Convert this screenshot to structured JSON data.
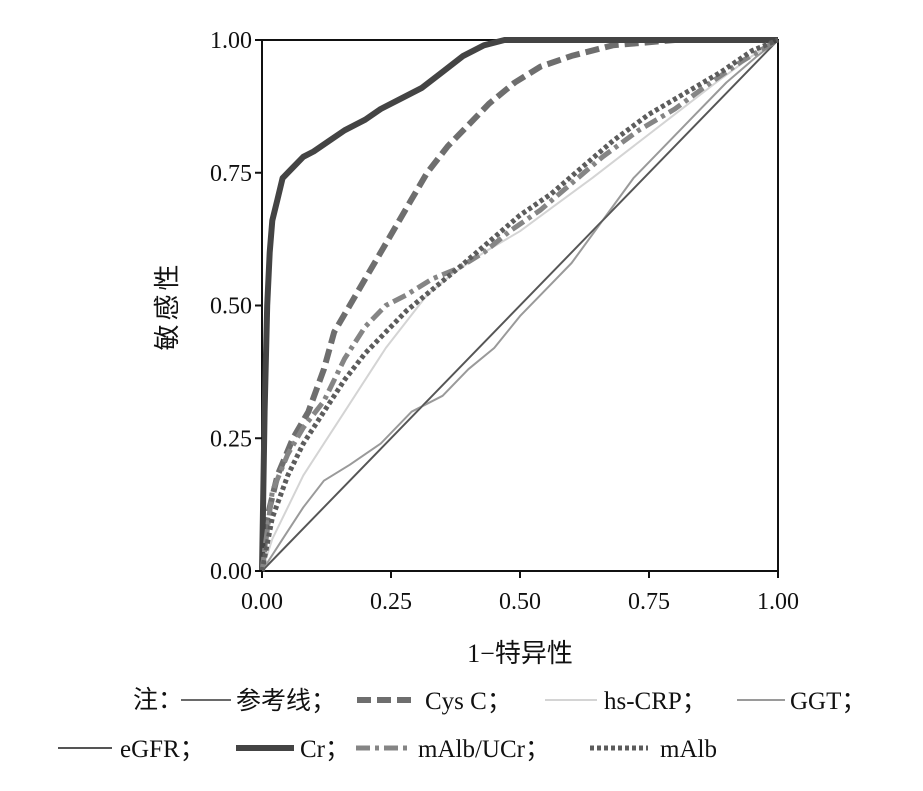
{
  "chart_data": {
    "type": "line",
    "xlabel": "1−特异性",
    "ylabel": "敏感性",
    "xlim": [
      0,
      1
    ],
    "ylim": [
      0,
      1
    ],
    "x_ticks": [
      "0.00",
      "0.25",
      "0.50",
      "0.75",
      "1.00"
    ],
    "y_ticks": [
      "0.00",
      "0.25",
      "0.50",
      "0.75",
      "1.00"
    ],
    "grid": false,
    "legend_position": "bottom",
    "legend_prefix": "注：",
    "series": [
      {
        "name": "参考线",
        "color": "#6a6a6a",
        "dash": "solid",
        "width": 2,
        "points": [
          [
            0,
            0
          ],
          [
            1,
            1
          ]
        ]
      },
      {
        "name": "Cys C",
        "color": "#6e6e6e",
        "dash": "dashed",
        "width": 6,
        "points": [
          [
            0,
            0
          ],
          [
            0.01,
            0.1
          ],
          [
            0.03,
            0.18
          ],
          [
            0.06,
            0.25
          ],
          [
            0.09,
            0.3
          ],
          [
            0.12,
            0.38
          ],
          [
            0.14,
            0.45
          ],
          [
            0.17,
            0.5
          ],
          [
            0.2,
            0.55
          ],
          [
            0.23,
            0.6
          ],
          [
            0.26,
            0.65
          ],
          [
            0.29,
            0.7
          ],
          [
            0.32,
            0.75
          ],
          [
            0.36,
            0.8
          ],
          [
            0.4,
            0.84
          ],
          [
            0.44,
            0.88
          ],
          [
            0.49,
            0.92
          ],
          [
            0.54,
            0.95
          ],
          [
            0.6,
            0.97
          ],
          [
            0.68,
            0.99
          ],
          [
            0.8,
            1.0
          ],
          [
            1,
            1
          ]
        ]
      },
      {
        "name": "hs-CRP",
        "color": "#d4d4d4",
        "dash": "solid",
        "width": 2,
        "points": [
          [
            0,
            0
          ],
          [
            0.02,
            0.06
          ],
          [
            0.05,
            0.12
          ],
          [
            0.08,
            0.18
          ],
          [
            0.12,
            0.24
          ],
          [
            0.16,
            0.3
          ],
          [
            0.2,
            0.36
          ],
          [
            0.24,
            0.42
          ],
          [
            0.28,
            0.47
          ],
          [
            0.32,
            0.52
          ],
          [
            0.37,
            0.56
          ],
          [
            0.43,
            0.6
          ],
          [
            0.5,
            0.64
          ],
          [
            0.57,
            0.69
          ],
          [
            0.64,
            0.74
          ],
          [
            0.72,
            0.8
          ],
          [
            0.8,
            0.86
          ],
          [
            0.88,
            0.92
          ],
          [
            0.95,
            0.97
          ],
          [
            1,
            1
          ]
        ]
      },
      {
        "name": "GGT",
        "color": "#9a9a9a",
        "dash": "solid",
        "width": 2,
        "points": [
          [
            0,
            0
          ],
          [
            0.04,
            0.06
          ],
          [
            0.08,
            0.12
          ],
          [
            0.12,
            0.17
          ],
          [
            0.17,
            0.2
          ],
          [
            0.23,
            0.24
          ],
          [
            0.29,
            0.3
          ],
          [
            0.35,
            0.33
          ],
          [
            0.4,
            0.38
          ],
          [
            0.45,
            0.42
          ],
          [
            0.5,
            0.48
          ],
          [
            0.55,
            0.53
          ],
          [
            0.6,
            0.58
          ],
          [
            0.66,
            0.66
          ],
          [
            0.72,
            0.74
          ],
          [
            0.78,
            0.8
          ],
          [
            0.84,
            0.86
          ],
          [
            0.9,
            0.92
          ],
          [
            0.96,
            0.97
          ],
          [
            1,
            1
          ]
        ]
      },
      {
        "name": "eGFR",
        "color": "#555555",
        "dash": "solid",
        "width": 1.5,
        "points": [
          [
            0,
            0
          ],
          [
            1,
            1
          ]
        ]
      },
      {
        "name": "Cr",
        "color": "#444444",
        "dash": "solid",
        "width": 6,
        "points": [
          [
            0,
            0
          ],
          [
            0.005,
            0.3
          ],
          [
            0.01,
            0.5
          ],
          [
            0.015,
            0.6
          ],
          [
            0.02,
            0.66
          ],
          [
            0.03,
            0.7
          ],
          [
            0.04,
            0.74
          ],
          [
            0.06,
            0.76
          ],
          [
            0.08,
            0.78
          ],
          [
            0.1,
            0.79
          ],
          [
            0.13,
            0.81
          ],
          [
            0.16,
            0.83
          ],
          [
            0.2,
            0.85
          ],
          [
            0.23,
            0.87
          ],
          [
            0.27,
            0.89
          ],
          [
            0.31,
            0.91
          ],
          [
            0.35,
            0.94
          ],
          [
            0.39,
            0.97
          ],
          [
            0.43,
            0.99
          ],
          [
            0.47,
            1.0
          ],
          [
            1,
            1
          ]
        ]
      },
      {
        "name": "mAlb/UCr",
        "color": "#858585",
        "dash": "dashdot",
        "width": 5,
        "points": [
          [
            0,
            0
          ],
          [
            0.02,
            0.15
          ],
          [
            0.05,
            0.22
          ],
          [
            0.08,
            0.27
          ],
          [
            0.12,
            0.32
          ],
          [
            0.16,
            0.4
          ],
          [
            0.2,
            0.46
          ],
          [
            0.24,
            0.5
          ],
          [
            0.28,
            0.52
          ],
          [
            0.33,
            0.55
          ],
          [
            0.38,
            0.57
          ],
          [
            0.43,
            0.6
          ],
          [
            0.48,
            0.64
          ],
          [
            0.54,
            0.68
          ],
          [
            0.6,
            0.73
          ],
          [
            0.66,
            0.78
          ],
          [
            0.73,
            0.83
          ],
          [
            0.8,
            0.87
          ],
          [
            0.87,
            0.92
          ],
          [
            0.93,
            0.96
          ],
          [
            1,
            1
          ]
        ]
      },
      {
        "name": "mAlb",
        "color": "#5c5c5c",
        "dash": "dotted",
        "width": 5,
        "points": [
          [
            0,
            0
          ],
          [
            0.02,
            0.1
          ],
          [
            0.05,
            0.18
          ],
          [
            0.08,
            0.24
          ],
          [
            0.12,
            0.3
          ],
          [
            0.16,
            0.36
          ],
          [
            0.2,
            0.41
          ],
          [
            0.24,
            0.45
          ],
          [
            0.28,
            0.49
          ],
          [
            0.33,
            0.53
          ],
          [
            0.38,
            0.57
          ],
          [
            0.44,
            0.62
          ],
          [
            0.5,
            0.67
          ],
          [
            0.56,
            0.71
          ],
          [
            0.62,
            0.76
          ],
          [
            0.68,
            0.81
          ],
          [
            0.75,
            0.86
          ],
          [
            0.82,
            0.9
          ],
          [
            0.89,
            0.94
          ],
          [
            0.95,
            0.98
          ],
          [
            1,
            1
          ]
        ]
      }
    ]
  }
}
